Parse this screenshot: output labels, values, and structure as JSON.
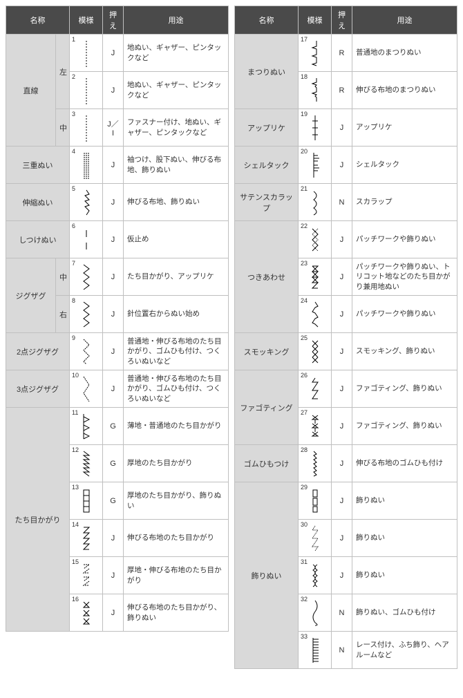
{
  "headers": {
    "name": "名称",
    "pattern": "模様",
    "foot": "押え",
    "use": "用途"
  },
  "colors": {
    "header_bg": "#4a4a4a",
    "header_fg": "#ffffff",
    "name_bg": "#d9d9d9",
    "border": "#bfbfbf",
    "text": "#333333"
  },
  "left": [
    {
      "group": "直線",
      "sub": "左",
      "sub_rowspan": 2,
      "group_rowspan": 3,
      "num": "1",
      "icon": "straight-left",
      "foot": "J",
      "use": "地ぬい、ギャザー、ピンタックなど"
    },
    {
      "num": "2",
      "icon": "straight-left",
      "foot": "J",
      "use": "地ぬい、ギャザー、ピンタックなど"
    },
    {
      "sub": "中",
      "sub_rowspan": 1,
      "num": "3",
      "icon": "straight-center",
      "foot": "J／I",
      "use": "ファスナー付け、地ぬい、ギャザー、ピンタックなど"
    },
    {
      "group": "三重ぬい",
      "group_colspan": 2,
      "num": "4",
      "icon": "triple",
      "foot": "J",
      "use": "袖つけ、股下ぬい、伸びる布地、飾りぬい"
    },
    {
      "group": "伸縮ぬい",
      "group_colspan": 2,
      "num": "5",
      "icon": "stretch",
      "foot": "J",
      "use": "伸びる布地、飾りぬい"
    },
    {
      "group": "しつけぬい",
      "group_colspan": 2,
      "num": "6",
      "icon": "basting",
      "foot": "J",
      "use": "仮止め"
    },
    {
      "group": "ジグザグ",
      "group_rowspan": 2,
      "sub": "中",
      "sub_rowspan": 1,
      "num": "7",
      "icon": "zigzag",
      "foot": "J",
      "use": "たち目かがり、アップリケ"
    },
    {
      "sub": "右",
      "sub_rowspan": 1,
      "num": "8",
      "icon": "zigzag-right",
      "foot": "J",
      "use": "針位置右からぬい始め"
    },
    {
      "group": "2点ジグザグ",
      "group_colspan": 2,
      "num": "9",
      "icon": "zigzag2",
      "foot": "J",
      "use": "普通地・伸びる布地のたち目かがり、ゴムひも付け、つくろいぬいなど"
    },
    {
      "group": "3点ジグザグ",
      "group_colspan": 2,
      "num": "10",
      "icon": "zigzag3",
      "foot": "J",
      "use": "普通地・伸びる布地のたち目かがり、ゴムひも付け、つくろいぬいなど"
    },
    {
      "group": "たち目かがり",
      "group_rowspan": 6,
      "group_colspan": 2,
      "num": "11",
      "icon": "overcast1",
      "foot": "G",
      "use": "薄地・普通地のたち目かがり"
    },
    {
      "num": "12",
      "icon": "overcast2",
      "foot": "G",
      "use": "厚地のたち目かがり"
    },
    {
      "num": "13",
      "icon": "overcast3",
      "foot": "G",
      "use": "厚地のたち目かがり、飾りぬい"
    },
    {
      "num": "14",
      "icon": "overcast4",
      "foot": "J",
      "use": "伸びる布地のたち目かがり"
    },
    {
      "num": "15",
      "icon": "overcast5",
      "foot": "J",
      "use": "厚地・伸びる布地のたち目かがり"
    },
    {
      "num": "16",
      "icon": "overcast6",
      "foot": "J",
      "use": "伸びる布地のたち目かがり、飾りぬい"
    }
  ],
  "right": [
    {
      "group": "まつりぬい",
      "group_rowspan": 2,
      "group_colspan": 2,
      "num": "17",
      "icon": "blind1",
      "foot": "R",
      "use": "普通地のまつりぬい"
    },
    {
      "num": "18",
      "icon": "blind2",
      "foot": "R",
      "use": "伸びる布地のまつりぬい"
    },
    {
      "group": "アップリケ",
      "group_colspan": 2,
      "num": "19",
      "icon": "applique",
      "foot": "J",
      "use": "アップリケ"
    },
    {
      "group": "シェルタック",
      "group_colspan": 2,
      "num": "20",
      "icon": "shell",
      "foot": "J",
      "use": "シェルタック"
    },
    {
      "group": "サテンスカラップ",
      "group_colspan": 2,
      "num": "21",
      "icon": "scallop",
      "foot": "N",
      "use": "スカラップ"
    },
    {
      "group": "つきあわせ",
      "group_rowspan": 3,
      "group_colspan": 2,
      "num": "22",
      "icon": "joining1",
      "foot": "J",
      "use": "パッチワークや飾りぬい"
    },
    {
      "num": "23",
      "icon": "joining2",
      "foot": "J",
      "use": "パッチワークや飾りぬい、トリコット地などのたち目かがり兼用地ぬい"
    },
    {
      "num": "24",
      "icon": "joining3",
      "foot": "J",
      "use": "パッチワークや飾りぬい"
    },
    {
      "group": "スモッキング",
      "group_colspan": 2,
      "num": "25",
      "icon": "smocking",
      "foot": "J",
      "use": "スモッキング、飾りぬい"
    },
    {
      "group": "ファゴティング",
      "group_rowspan": 2,
      "group_colspan": 2,
      "num": "26",
      "icon": "fagoting1",
      "foot": "J",
      "use": "ファゴティング、飾りぬい"
    },
    {
      "num": "27",
      "icon": "fagoting2",
      "foot": "J",
      "use": "ファゴティング、飾りぬい"
    },
    {
      "group": "ゴムひもつけ",
      "group_colspan": 2,
      "num": "28",
      "icon": "elastic",
      "foot": "J",
      "use": "伸びる布地のゴムひも付け"
    },
    {
      "group": "飾りぬい",
      "group_rowspan": 5,
      "group_colspan": 2,
      "num": "29",
      "icon": "deco1",
      "foot": "J",
      "use": "飾りぬい"
    },
    {
      "num": "30",
      "icon": "deco2",
      "foot": "J",
      "use": "飾りぬい"
    },
    {
      "num": "31",
      "icon": "deco3",
      "foot": "J",
      "use": "飾りぬい"
    },
    {
      "num": "32",
      "icon": "deco4",
      "foot": "N",
      "use": "飾りぬい、ゴムひも付け"
    },
    {
      "num": "33",
      "icon": "deco5",
      "foot": "N",
      "use": "レース付け、ふち飾り、ヘアルームなど"
    }
  ]
}
